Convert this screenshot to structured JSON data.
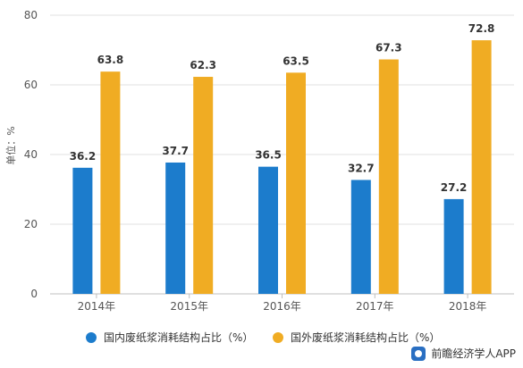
{
  "chart_data": {
    "type": "bar",
    "categories": [
      "2014年",
      "2015年",
      "2016年",
      "2017年",
      "2018年"
    ],
    "series": [
      {
        "name": "国内废纸浆消耗结构占比（%）",
        "values": [
          36.2,
          37.7,
          36.5,
          32.7,
          27.2
        ],
        "color": "#1c7ccc"
      },
      {
        "name": "国外废纸浆消耗结构占比（%）",
        "values": [
          63.8,
          62.3,
          63.5,
          67.3,
          72.8
        ],
        "color": "#f0ac23"
      }
    ],
    "ylabel": "单位：%",
    "ylim": [
      0,
      80
    ],
    "yticks": [
      0,
      20,
      40,
      60,
      80
    ],
    "grid": true,
    "legend_position": "bottom"
  },
  "footer": {
    "source": "前瞻经济学人APP",
    "icon": "app-logo-icon"
  }
}
